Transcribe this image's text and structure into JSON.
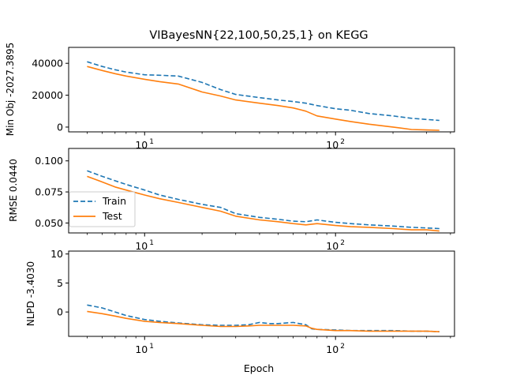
{
  "title": "VIBayesNN{22,100,50,25,1} on KEGG",
  "xlabel": "Epoch",
  "legend": {
    "entries": [
      {
        "label": "Train",
        "color": "#1f77b4",
        "style": "dashed"
      },
      {
        "label": "Test",
        "color": "#ff7f0e",
        "style": "solid"
      }
    ]
  },
  "colors": {
    "train": "#1f77b4",
    "test": "#ff7f0e"
  },
  "chart_data": [
    {
      "type": "line",
      "ylabel": "Min Obj -2027.3895",
      "xscale": "log",
      "xlim": [
        4,
        420
      ],
      "ylim": [
        -3000,
        50000
      ],
      "yticks": [
        0,
        20000,
        40000
      ],
      "xticks": [
        {
          "value": 10,
          "label": "10",
          "sup": "1"
        },
        {
          "value": 100,
          "label": "10",
          "sup": "2"
        }
      ],
      "series": [
        {
          "name": "Train",
          "key": "train",
          "x": [
            5,
            6,
            7,
            8,
            10,
            12,
            15,
            20,
            25,
            30,
            40,
            50,
            60,
            70,
            80,
            100,
            120,
            150,
            200,
            250,
            300,
            350
          ],
          "y": [
            41000,
            38000,
            36000,
            34500,
            32800,
            32500,
            32000,
            28000,
            23500,
            20500,
            18500,
            17000,
            16000,
            15000,
            13500,
            11500,
            10500,
            8500,
            7000,
            5500,
            4800,
            4200
          ]
        },
        {
          "name": "Test",
          "key": "test",
          "x": [
            5,
            6,
            7,
            8,
            10,
            12,
            15,
            20,
            25,
            30,
            40,
            50,
            60,
            70,
            80,
            100,
            120,
            150,
            200,
            250,
            300,
            350
          ],
          "y": [
            38000,
            35500,
            33500,
            32000,
            30000,
            28500,
            27000,
            22000,
            19500,
            17000,
            15000,
            13500,
            12000,
            10000,
            7000,
            5000,
            3500,
            1800,
            0,
            -1500,
            -1800,
            -2000
          ]
        }
      ]
    },
    {
      "type": "line",
      "ylabel": "RMSE 0.0440",
      "xscale": "log",
      "xlim": [
        4,
        420
      ],
      "ylim": [
        0.042,
        0.11
      ],
      "yticks": [
        0.05,
        0.075,
        0.1
      ],
      "yticklabels": [
        "0.050",
        "0.075",
        "0.100"
      ],
      "xticks": [
        {
          "value": 10,
          "label": "10",
          "sup": "1"
        },
        {
          "value": 100,
          "label": "10",
          "sup": "2"
        }
      ],
      "series": [
        {
          "name": "Train",
          "key": "train",
          "x": [
            5,
            6,
            7,
            8,
            10,
            12,
            15,
            20,
            25,
            30,
            40,
            50,
            60,
            70,
            80,
            100,
            120,
            150,
            200,
            250,
            300,
            350
          ],
          "y": [
            0.092,
            0.0875,
            0.084,
            0.081,
            0.0765,
            0.0725,
            0.069,
            0.065,
            0.0625,
            0.0575,
            0.0545,
            0.053,
            0.0515,
            0.051,
            0.0525,
            0.0505,
            0.0495,
            0.0485,
            0.0475,
            0.0465,
            0.046,
            0.0455
          ]
        },
        {
          "name": "Test",
          "key": "test",
          "x": [
            5,
            6,
            7,
            8,
            10,
            12,
            15,
            20,
            25,
            30,
            40,
            50,
            60,
            70,
            80,
            100,
            120,
            150,
            200,
            250,
            300,
            350
          ],
          "y": [
            0.0875,
            0.083,
            0.079,
            0.0765,
            0.0725,
            0.0695,
            0.0665,
            0.0625,
            0.0595,
            0.0555,
            0.0525,
            0.051,
            0.0495,
            0.0485,
            0.0495,
            0.048,
            0.047,
            0.0465,
            0.0455,
            0.0445,
            0.0445,
            0.0435
          ]
        }
      ]
    },
    {
      "type": "line",
      "ylabel": "NLPD -3.4030",
      "xscale": "log",
      "xlim": [
        4,
        420
      ],
      "ylim": [
        -4.2,
        10.5
      ],
      "yticks": [
        0,
        5,
        10
      ],
      "xticks": [
        {
          "value": 10,
          "label": "10",
          "sup": "1"
        },
        {
          "value": 100,
          "label": "10",
          "sup": "2"
        }
      ],
      "series": [
        {
          "name": "Train",
          "key": "train",
          "x": [
            5,
            6,
            7,
            8,
            10,
            12,
            15,
            20,
            25,
            30,
            35,
            40,
            45,
            50,
            60,
            70,
            75,
            80,
            100,
            120,
            150,
            200,
            250,
            300,
            350
          ],
          "y": [
            1.2,
            0.7,
            0.0,
            -0.6,
            -1.3,
            -1.6,
            -1.9,
            -2.2,
            -2.3,
            -2.3,
            -2.2,
            -1.8,
            -2.0,
            -2.0,
            -1.8,
            -2.2,
            -2.9,
            -3.0,
            -3.1,
            -3.2,
            -3.2,
            -3.2,
            -3.3,
            -3.3,
            -3.4
          ]
        },
        {
          "name": "Test",
          "key": "test",
          "x": [
            5,
            6,
            7,
            8,
            10,
            12,
            15,
            20,
            25,
            30,
            35,
            40,
            45,
            50,
            60,
            70,
            75,
            80,
            100,
            120,
            150,
            200,
            250,
            300,
            350
          ],
          "y": [
            0.1,
            -0.3,
            -0.7,
            -1.1,
            -1.6,
            -1.8,
            -2.0,
            -2.3,
            -2.5,
            -2.5,
            -2.4,
            -2.3,
            -2.3,
            -2.3,
            -2.3,
            -2.4,
            -2.8,
            -3.0,
            -3.2,
            -3.2,
            -3.3,
            -3.3,
            -3.3,
            -3.3,
            -3.4
          ]
        }
      ]
    }
  ]
}
